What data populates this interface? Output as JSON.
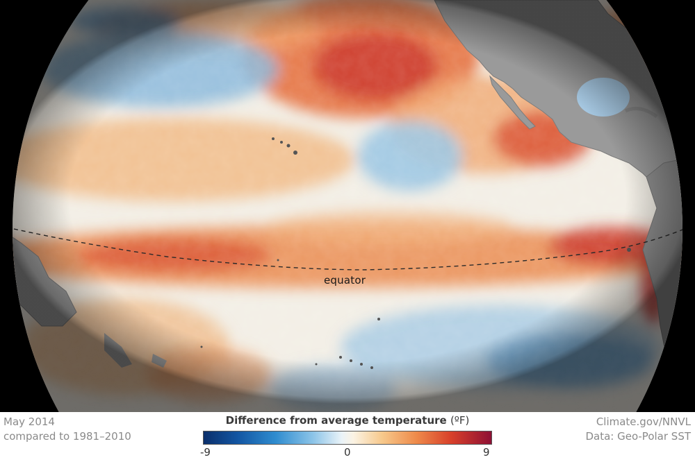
{
  "map": {
    "equator_label": "equator"
  },
  "footer": {
    "date_line1": "May 2014",
    "date_line2": "compared to 1981–2010",
    "legend_title": "Difference from average temperature",
    "legend_unit": "(ºF)",
    "tick_min": "-9",
    "tick_mid": "0",
    "tick_max": "9",
    "credit_line1": "Climate.gov/NNVL",
    "credit_line2": "Data: Geo-Polar SST"
  },
  "colors": {
    "cold_extreme": "#0b2f6b",
    "cold": "#2f8ccf",
    "neutral": "#f3f3f0",
    "warm": "#ee8a4a",
    "warm_extreme": "#8e1034",
    "land": "#9a9a9a"
  }
}
